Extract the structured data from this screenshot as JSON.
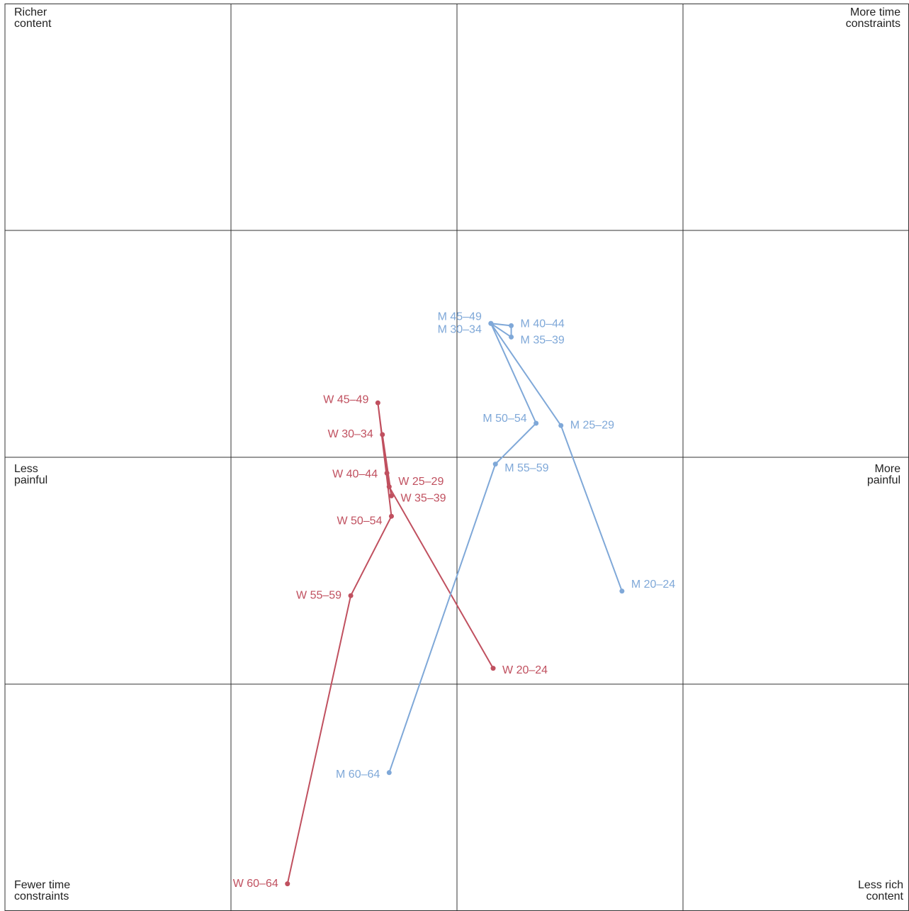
{
  "chart_data": {
    "type": "line",
    "xlim": [
      -2,
      2
    ],
    "ylim": [
      -2,
      2
    ],
    "xticks": [
      -2,
      -1,
      0,
      1,
      2
    ],
    "yticks": [
      -2,
      -1,
      0,
      1,
      2
    ],
    "grid": true,
    "annotations": [
      {
        "corner": "top-left",
        "text": [
          "Richer",
          "content"
        ]
      },
      {
        "corner": "top-right",
        "text": [
          "More time",
          "constraints"
        ]
      },
      {
        "corner": "middle-left",
        "text": [
          "Less",
          "painful"
        ]
      },
      {
        "corner": "middle-right",
        "text": [
          "More",
          "painful"
        ]
      },
      {
        "corner": "bottom-left",
        "text": [
          "Fewer time",
          "constraints"
        ]
      },
      {
        "corner": "bottom-right",
        "text": [
          "Less rich",
          "content"
        ]
      }
    ],
    "series": [
      {
        "color": "#c0505f",
        "labels": [
          "W 20–24",
          "W 25–29",
          "W 30–34",
          "W 35–39",
          "W 40–44",
          "W 45–49",
          "W 50–54",
          "W 55–59",
          "W 60–64"
        ],
        "x": [
          0.16,
          -0.3,
          -0.33,
          -0.29,
          -0.31,
          -0.35,
          -0.29,
          -0.47,
          -0.75
        ],
        "y": [
          -0.93,
          -0.13,
          0.1,
          -0.17,
          -0.07,
          0.24,
          -0.26,
          -0.61,
          -1.88
        ]
      },
      {
        "color": "#7fa8d8",
        "labels": [
          "M 20–24",
          "M 25–29",
          "M 30–34",
          "M 35–39",
          "M 40–44",
          "M 45–49",
          "M 50–54",
          "M 55–59",
          "M 60–64"
        ],
        "x": [
          0.73,
          0.46,
          0.15,
          0.24,
          0.24,
          0.15,
          0.35,
          0.17,
          -0.3
        ],
        "y": [
          -0.59,
          0.14,
          0.59,
          0.53,
          0.58,
          0.59,
          0.15,
          -0.03,
          -1.39
        ]
      }
    ]
  }
}
